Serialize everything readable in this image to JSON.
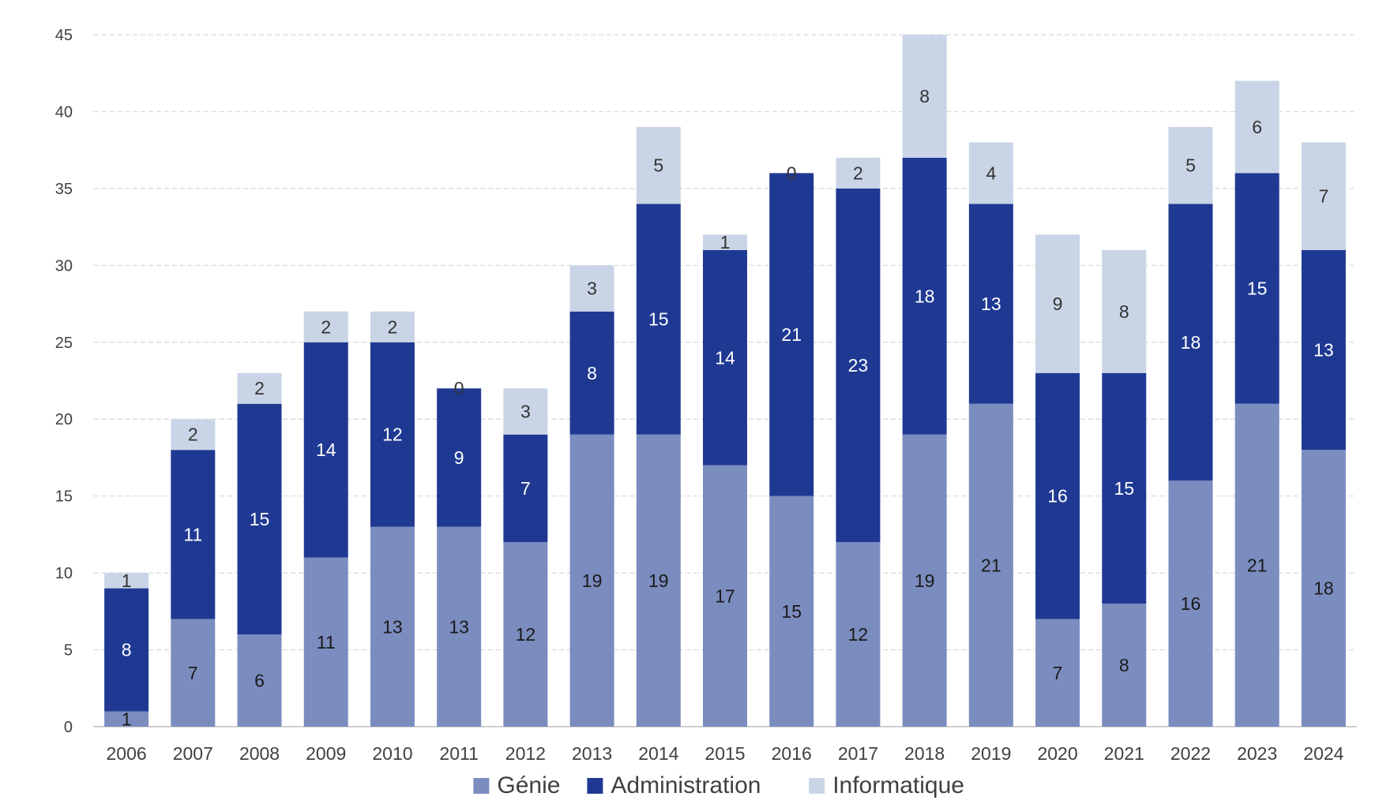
{
  "chart_data": {
    "type": "bar",
    "stacked": true,
    "title": "",
    "xlabel": "",
    "ylabel": "",
    "categories": [
      "2006",
      "2007",
      "2008",
      "2009",
      "2010",
      "2011",
      "2012",
      "2013",
      "2014",
      "2015",
      "2016",
      "2017",
      "2018",
      "2019",
      "2020",
      "2021",
      "2022",
      "2023",
      "2024"
    ],
    "series": [
      {
        "name": "Génie",
        "color": "#7b8cbf",
        "label_color": "#1a1a1a",
        "values": [
          1,
          7,
          6,
          11,
          13,
          13,
          12,
          19,
          19,
          17,
          15,
          12,
          19,
          21,
          7,
          8,
          16,
          21,
          18
        ]
      },
      {
        "name": "Administration",
        "color": "#1f3993",
        "label_color": "#ffffff",
        "values": [
          8,
          11,
          15,
          14,
          12,
          9,
          7,
          8,
          15,
          14,
          21,
          23,
          18,
          13,
          16,
          15,
          18,
          15,
          13
        ]
      },
      {
        "name": "Informatique",
        "color": "#c9d5e6",
        "label_color": "#333333",
        "values": [
          1,
          2,
          2,
          2,
          2,
          0,
          3,
          3,
          5,
          1,
          0,
          2,
          8,
          4,
          9,
          8,
          5,
          6,
          7
        ]
      }
    ],
    "ylim": [
      0,
      45
    ],
    "yticks": [
      0,
      5,
      10,
      15,
      20,
      25,
      30,
      35,
      40,
      45
    ],
    "grid": true,
    "legend_position": "bottom"
  }
}
